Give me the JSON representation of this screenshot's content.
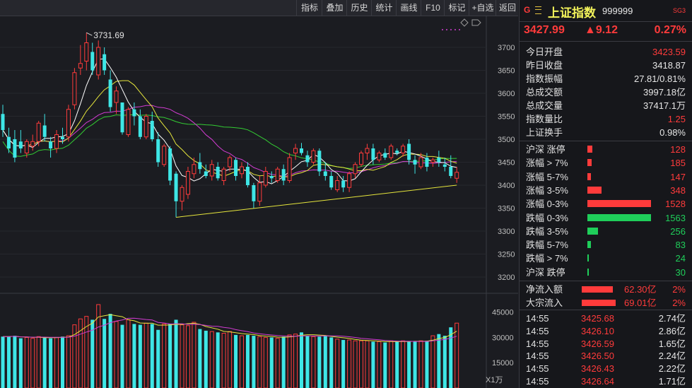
{
  "toolbar": {
    "buttons": [
      "指标",
      "叠加",
      "历史",
      "统计",
      "画线",
      "F10",
      "标记",
      "+自选",
      "返回"
    ]
  },
  "header": {
    "g_icon": "G",
    "menu_icon": "menu-icon",
    "name": "上证指数",
    "code": "999999",
    "badge": "SG3",
    "price": "3427.99",
    "change": "▲9.12",
    "change_pct": "0.27%"
  },
  "stats": [
    {
      "label": "今日开盘",
      "value": "3423.59",
      "color": "red"
    },
    {
      "label": "昨日收盘",
      "value": "3418.87",
      "color": "white"
    },
    {
      "label": "指数振幅",
      "value": "27.81/0.81%",
      "color": "white"
    },
    {
      "label": "总成交额",
      "value": "3997.18亿",
      "color": "white"
    },
    {
      "label": "总成交量",
      "value": "37417.1万",
      "color": "white"
    },
    {
      "label": "指数量比",
      "value": "1.25",
      "color": "red"
    },
    {
      "label": "上证换手",
      "value": "0.98%",
      "color": "white"
    }
  ],
  "breadth": [
    {
      "label": "沪深 涨停",
      "value": "128",
      "color": "red",
      "fraction": 0.08
    },
    {
      "label": "涨幅 > 7%",
      "value": "185",
      "color": "red",
      "fraction": 0.07
    },
    {
      "label": "涨幅 5-7%",
      "value": "147",
      "color": "red",
      "fraction": 0.06
    },
    {
      "label": "涨幅 3-5%",
      "value": "348",
      "color": "red",
      "fraction": 0.22
    },
    {
      "label": "涨幅 0-3%",
      "value": "1528",
      "color": "red",
      "fraction": 1.0
    },
    {
      "label": "跌幅 0-3%",
      "value": "1563",
      "color": "green",
      "fraction": 1.0
    },
    {
      "label": "跌幅 3-5%",
      "value": "256",
      "color": "green",
      "fraction": 0.17
    },
    {
      "label": "跌幅 5-7%",
      "value": "83",
      "color": "green",
      "fraction": 0.05
    },
    {
      "label": "跌幅 > 7%",
      "value": "24",
      "color": "green",
      "fraction": 0.015
    },
    {
      "label": "沪深 跌停",
      "value": "30",
      "color": "green",
      "fraction": 0.015
    }
  ],
  "flows": [
    {
      "label": "净流入额",
      "value": "62.30亿",
      "pct": "2%",
      "fraction": 0.8
    },
    {
      "label": "大宗流入",
      "value": "69.01亿",
      "pct": "2%",
      "fraction": 0.88
    }
  ],
  "trades": [
    {
      "time": "14:55",
      "price": "3425.68",
      "vol": "2.74亿"
    },
    {
      "time": "14:55",
      "price": "3426.10",
      "vol": "2.86亿"
    },
    {
      "time": "14:55",
      "price": "3426.59",
      "vol": "1.65亿"
    },
    {
      "time": "14:55",
      "price": "3426.50",
      "vol": "2.24亿"
    },
    {
      "time": "14:55",
      "price": "3426.43",
      "vol": "2.22亿"
    },
    {
      "time": "14:55",
      "price": "3426.64",
      "vol": "1.71亿"
    }
  ],
  "chart_data": {
    "type": "candlestick",
    "price_axis": {
      "ticks": [
        3200,
        3250,
        3300,
        3350,
        3400,
        3450,
        3500,
        3550,
        3600,
        3650,
        3700
      ],
      "ylim": [
        3180,
        3760
      ]
    },
    "volume_axis": {
      "ticks": [
        15000,
        30000,
        45000
      ],
      "ylim": [
        0,
        52000
      ],
      "unit_label": "X1万"
    },
    "high_annotation": "3731.69",
    "colors": {
      "up": "#ff3b3b",
      "down": "#3ee6e6",
      "ma5": "#ffffff",
      "ma10": "#e6e63c",
      "ma20": "#d23cd2",
      "ma60": "#33cc33",
      "trend": "#e6e63c"
    },
    "candles": [
      {
        "o": 3555,
        "h": 3575,
        "l": 3505,
        "c": 3520
      },
      {
        "o": 3505,
        "h": 3525,
        "l": 3470,
        "c": 3480
      },
      {
        "o": 3500,
        "h": 3520,
        "l": 3450,
        "c": 3460
      },
      {
        "o": 3495,
        "h": 3520,
        "l": 3470,
        "c": 3480
      },
      {
        "o": 3470,
        "h": 3500,
        "l": 3460,
        "c": 3495
      },
      {
        "o": 3485,
        "h": 3510,
        "l": 3475,
        "c": 3495
      },
      {
        "o": 3495,
        "h": 3540,
        "l": 3485,
        "c": 3535
      },
      {
        "o": 3530,
        "h": 3555,
        "l": 3495,
        "c": 3505
      },
      {
        "o": 3495,
        "h": 3505,
        "l": 3460,
        "c": 3480
      },
      {
        "o": 3480,
        "h": 3520,
        "l": 3470,
        "c": 3510
      },
      {
        "o": 3505,
        "h": 3525,
        "l": 3490,
        "c": 3500
      },
      {
        "o": 3505,
        "h": 3575,
        "l": 3495,
        "c": 3565
      },
      {
        "o": 3575,
        "h": 3655,
        "l": 3565,
        "c": 3645
      },
      {
        "o": 3655,
        "h": 3705,
        "l": 3640,
        "c": 3665
      },
      {
        "o": 3670,
        "h": 3732,
        "l": 3650,
        "c": 3710
      },
      {
        "o": 3690,
        "h": 3710,
        "l": 3640,
        "c": 3650
      },
      {
        "o": 3640,
        "h": 3715,
        "l": 3630,
        "c": 3700
      },
      {
        "o": 3685,
        "h": 3700,
        "l": 3640,
        "c": 3650
      },
      {
        "o": 3630,
        "h": 3650,
        "l": 3560,
        "c": 3570
      },
      {
        "o": 3580,
        "h": 3615,
        "l": 3555,
        "c": 3605
      },
      {
        "o": 3580,
        "h": 3580,
        "l": 3510,
        "c": 3515
      },
      {
        "o": 3510,
        "h": 3570,
        "l": 3505,
        "c": 3565
      },
      {
        "o": 3565,
        "h": 3580,
        "l": 3530,
        "c": 3550
      },
      {
        "o": 3550,
        "h": 3565,
        "l": 3500,
        "c": 3505
      },
      {
        "o": 3505,
        "h": 3555,
        "l": 3500,
        "c": 3550
      },
      {
        "o": 3540,
        "h": 3560,
        "l": 3495,
        "c": 3500
      },
      {
        "o": 3500,
        "h": 3515,
        "l": 3440,
        "c": 3450
      },
      {
        "o": 3445,
        "h": 3490,
        "l": 3440,
        "c": 3485
      },
      {
        "o": 3480,
        "h": 3485,
        "l": 3400,
        "c": 3410
      },
      {
        "o": 3425,
        "h": 3430,
        "l": 3330,
        "c": 3365
      },
      {
        "o": 3365,
        "h": 3400,
        "l": 3345,
        "c": 3395
      },
      {
        "o": 3380,
        "h": 3440,
        "l": 3370,
        "c": 3430
      },
      {
        "o": 3425,
        "h": 3460,
        "l": 3415,
        "c": 3445
      },
      {
        "o": 3450,
        "h": 3470,
        "l": 3425,
        "c": 3435
      },
      {
        "o": 3430,
        "h": 3445,
        "l": 3415,
        "c": 3420
      },
      {
        "o": 3420,
        "h": 3455,
        "l": 3410,
        "c": 3445
      },
      {
        "o": 3440,
        "h": 3450,
        "l": 3410,
        "c": 3415
      },
      {
        "o": 3410,
        "h": 3440,
        "l": 3400,
        "c": 3435
      },
      {
        "o": 3440,
        "h": 3465,
        "l": 3430,
        "c": 3460
      },
      {
        "o": 3455,
        "h": 3460,
        "l": 3410,
        "c": 3420
      },
      {
        "o": 3425,
        "h": 3450,
        "l": 3415,
        "c": 3440
      },
      {
        "o": 3440,
        "h": 3450,
        "l": 3395,
        "c": 3400
      },
      {
        "o": 3400,
        "h": 3405,
        "l": 3350,
        "c": 3365
      },
      {
        "o": 3365,
        "h": 3420,
        "l": 3355,
        "c": 3405
      },
      {
        "o": 3400,
        "h": 3440,
        "l": 3395,
        "c": 3430
      },
      {
        "o": 3420,
        "h": 3430,
        "l": 3405,
        "c": 3415
      },
      {
        "o": 3410,
        "h": 3440,
        "l": 3405,
        "c": 3435
      },
      {
        "o": 3435,
        "h": 3445,
        "l": 3400,
        "c": 3410
      },
      {
        "o": 3410,
        "h": 3470,
        "l": 3405,
        "c": 3460
      },
      {
        "o": 3470,
        "h": 3490,
        "l": 3455,
        "c": 3480
      },
      {
        "o": 3480,
        "h": 3492,
        "l": 3465,
        "c": 3470
      },
      {
        "o": 3465,
        "h": 3475,
        "l": 3440,
        "c": 3450
      },
      {
        "o": 3450,
        "h": 3480,
        "l": 3445,
        "c": 3475
      },
      {
        "o": 3475,
        "h": 3480,
        "l": 3420,
        "c": 3430
      },
      {
        "o": 3430,
        "h": 3450,
        "l": 3410,
        "c": 3420
      },
      {
        "o": 3420,
        "h": 3430,
        "l": 3390,
        "c": 3395
      },
      {
        "o": 3390,
        "h": 3420,
        "l": 3385,
        "c": 3410
      },
      {
        "o": 3410,
        "h": 3420,
        "l": 3385,
        "c": 3395
      },
      {
        "o": 3395,
        "h": 3430,
        "l": 3385,
        "c": 3425
      },
      {
        "o": 3425,
        "h": 3450,
        "l": 3415,
        "c": 3445
      },
      {
        "o": 3445,
        "h": 3475,
        "l": 3440,
        "c": 3470
      },
      {
        "o": 3470,
        "h": 3490,
        "l": 3455,
        "c": 3480
      },
      {
        "o": 3480,
        "h": 3490,
        "l": 3445,
        "c": 3455
      },
      {
        "o": 3455,
        "h": 3475,
        "l": 3450,
        "c": 3470
      },
      {
        "o": 3470,
        "h": 3480,
        "l": 3455,
        "c": 3460
      },
      {
        "o": 3460,
        "h": 3490,
        "l": 3455,
        "c": 3485
      },
      {
        "o": 3475,
        "h": 3480,
        "l": 3465,
        "c": 3470
      },
      {
        "o": 3470,
        "h": 3490,
        "l": 3462,
        "c": 3485
      },
      {
        "o": 3490,
        "h": 3500,
        "l": 3445,
        "c": 3455
      },
      {
        "o": 3455,
        "h": 3465,
        "l": 3425,
        "c": 3445
      },
      {
        "o": 3440,
        "h": 3470,
        "l": 3435,
        "c": 3460
      },
      {
        "o": 3460,
        "h": 3470,
        "l": 3430,
        "c": 3440
      },
      {
        "o": 3450,
        "h": 3460,
        "l": 3440,
        "c": 3455
      },
      {
        "o": 3460,
        "h": 3475,
        "l": 3440,
        "c": 3450
      },
      {
        "o": 3445,
        "h": 3460,
        "l": 3430,
        "c": 3440
      },
      {
        "o": 3440,
        "h": 3465,
        "l": 3415,
        "c": 3420
      },
      {
        "o": 3415,
        "h": 3440,
        "l": 3405,
        "c": 3428
      }
    ],
    "volumes": [
      30500,
      30500,
      31000,
      29500,
      30000,
      29500,
      30500,
      30000,
      29500,
      30000,
      30500,
      31000,
      37500,
      41000,
      42500,
      40500,
      49500,
      41000,
      44000,
      39500,
      37500,
      40500,
      38000,
      37500,
      38500,
      38000,
      34500,
      38000,
      38000,
      40500,
      37500,
      37000,
      39000,
      35000,
      34000,
      33500,
      33000,
      32500,
      33500,
      31500,
      31000,
      31500,
      31000,
      30500,
      30000,
      30000,
      29500,
      30500,
      31500,
      32000,
      33000,
      31000,
      30500,
      30500,
      31000,
      30000,
      29000,
      28500,
      28500,
      28000,
      28000,
      28000,
      27500,
      27500,
      27000,
      28000,
      27500,
      28000,
      27500,
      27500,
      28000,
      28000,
      31000,
      32000,
      31000,
      36000,
      38500
    ]
  }
}
